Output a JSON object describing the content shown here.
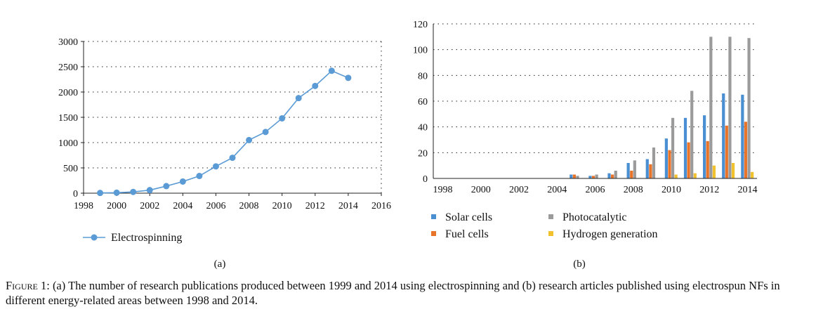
{
  "chart_data": [
    {
      "type": "line",
      "panel_label": "(a)",
      "x": [
        1999,
        2000,
        2001,
        2002,
        2003,
        2004,
        2005,
        2006,
        2007,
        2008,
        2009,
        2010,
        2011,
        2012,
        2013,
        2014
      ],
      "series": [
        {
          "name": "Electrospinning",
          "values": [
            5,
            10,
            25,
            60,
            140,
            230,
            340,
            530,
            700,
            1050,
            1210,
            1480,
            1880,
            2120,
            2420,
            2280
          ]
        }
      ],
      "xlim": [
        1998,
        2016
      ],
      "ylim": [
        0,
        3000
      ],
      "xticks": [
        "1998",
        "2000",
        "2002",
        "2004",
        "2006",
        "2008",
        "2010",
        "2012",
        "2014",
        "2016"
      ],
      "yticks": [
        "0",
        "500",
        "1000",
        "1500",
        "2000",
        "2500",
        "3000"
      ],
      "grid": "dotted",
      "legend_position": "bottom",
      "color": "#5b9bd5"
    },
    {
      "type": "bar",
      "panel_label": "(b)",
      "categories": [
        "1998",
        "1999",
        "2000",
        "2001",
        "2002",
        "2003",
        "2004",
        "2005",
        "2006",
        "2007",
        "2008",
        "2009",
        "2010",
        "2011",
        "2012",
        "2013",
        "2014"
      ],
      "series": [
        {
          "name": "Solar cells",
          "color": "#4a8fd2",
          "values": [
            0,
            0,
            0,
            0,
            0,
            0,
            0,
            3,
            2,
            4,
            12,
            15,
            31,
            47,
            49,
            66,
            65
          ]
        },
        {
          "name": "Fuel cells",
          "color": "#e8742a",
          "values": [
            0,
            0,
            0,
            0,
            0,
            0,
            0,
            3,
            2,
            3,
            6,
            11,
            22,
            28,
            29,
            41,
            44
          ]
        },
        {
          "name": "Photocatalytic",
          "color": "#9b9b9b",
          "values": [
            0,
            0,
            0,
            0,
            0,
            0,
            0,
            2,
            3,
            6,
            14,
            24,
            47,
            68,
            110,
            110,
            109
          ]
        },
        {
          "name": "Hydrogen generation",
          "color": "#f2c12e",
          "values": [
            0,
            0,
            0,
            0,
            0,
            0,
            0,
            0,
            0,
            0,
            0,
            0,
            3,
            4,
            10,
            12,
            5
          ]
        }
      ],
      "ylim": [
        0,
        120
      ],
      "xticks": [
        "1998",
        "2000",
        "2002",
        "2004",
        "2006",
        "2008",
        "2010",
        "2012",
        "2014"
      ],
      "yticks": [
        "0",
        "20",
        "40",
        "60",
        "80",
        "100",
        "120"
      ],
      "grid": "dotted",
      "legend_position": "bottom"
    }
  ],
  "caption": {
    "figure_label": "Figure 1:",
    "text": " (a) The number of research publications produced between 1999 and 2014 using electrospinning and (b) research articles published using electrospun NFs in different energy-related areas between 1998 and 2014."
  }
}
